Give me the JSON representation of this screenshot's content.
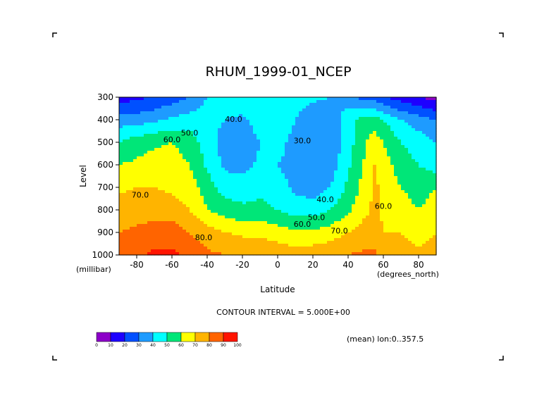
{
  "chart_data": {
    "type": "heatmap",
    "title": "RHUM_1999-01_NCEP",
    "xlabel": "Latitude",
    "ylabel": "Level",
    "x_units": "(degrees_north)",
    "y_units": "(millibar)",
    "xlim": [
      -90,
      90
    ],
    "ylim": [
      1000,
      300
    ],
    "x_ticks": [
      -80,
      -60,
      -40,
      -20,
      0,
      20,
      40,
      60,
      80
    ],
    "x_tick_labels": [
      "-80",
      "-60",
      "-40",
      "-20",
      "0",
      "20",
      "40",
      "60",
      "80"
    ],
    "y_ticks": [
      300,
      400,
      500,
      600,
      700,
      800,
      900,
      1000
    ],
    "y_tick_labels": [
      "300",
      "400",
      "500",
      "600",
      "700",
      "800",
      "900",
      "1000"
    ],
    "contour_interval_text": "CONTOUR INTERVAL = 5.000E+00",
    "annotation": "(mean) lon:0..357.5",
    "levels_x": [
      -90,
      -80,
      -70,
      -60,
      -50,
      -40,
      -30,
      -20,
      -10,
      0,
      10,
      20,
      30,
      40,
      50,
      55,
      60,
      70,
      80,
      90
    ],
    "levels_y": [
      300,
      400,
      500,
      600,
      700,
      800,
      900,
      1000
    ],
    "values": [
      [
        15,
        18,
        20,
        25,
        30,
        40,
        45,
        48,
        50,
        50,
        45,
        42,
        40,
        35,
        25,
        25,
        20,
        15,
        10,
        5
      ],
      [
        35,
        35,
        38,
        42,
        45,
        45,
        40,
        38,
        45,
        50,
        40,
        32,
        35,
        45,
        55,
        55,
        50,
        40,
        35,
        30
      ],
      [
        50,
        55,
        58,
        60,
        55,
        45,
        35,
        33,
        40,
        45,
        35,
        30,
        32,
        45,
        60,
        65,
        60,
        50,
        45,
        40
      ],
      [
        60,
        62,
        65,
        65,
        60,
        48,
        38,
        36,
        42,
        40,
        35,
        30,
        35,
        48,
        62,
        70,
        65,
        55,
        50,
        45
      ],
      [
        68,
        70,
        70,
        68,
        65,
        55,
        45,
        45,
        48,
        45,
        38,
        35,
        40,
        52,
        65,
        72,
        68,
        60,
        55,
        60
      ],
      [
        75,
        75,
        75,
        75,
        70,
        60,
        55,
        52,
        52,
        50,
        45,
        45,
        50,
        58,
        68,
        72,
        68,
        65,
        60,
        65
      ],
      [
        80,
        82,
        85,
        85,
        80,
        75,
        70,
        68,
        68,
        65,
        62,
        62,
        65,
        70,
        75,
        75,
        70,
        70,
        65,
        70
      ],
      [
        85,
        88,
        92,
        92,
        88,
        82,
        80,
        78,
        78,
        76,
        75,
        76,
        78,
        80,
        82,
        82,
        78,
        75,
        72,
        75
      ]
    ],
    "contour_labels": [
      {
        "text": "40.0",
        "x": -25,
        "y": 410
      },
      {
        "text": "50.0",
        "x": -50,
        "y": 470
      },
      {
        "text": "60.0",
        "x": -60,
        "y": 500
      },
      {
        "text": "70.0",
        "x": -78,
        "y": 745
      },
      {
        "text": "80.0",
        "x": -42,
        "y": 935
      },
      {
        "text": "30.0",
        "x": 14,
        "y": 505
      },
      {
        "text": "40.0",
        "x": 27,
        "y": 765
      },
      {
        "text": "50.0",
        "x": 22,
        "y": 845
      },
      {
        "text": "60.0",
        "x": 14,
        "y": 875
      },
      {
        "text": "70.0",
        "x": 35,
        "y": 905
      },
      {
        "text": "60.0",
        "x": 60,
        "y": 795
      }
    ],
    "colorbar": {
      "colors": [
        "#8c00c8",
        "#1e00ff",
        "#0050ff",
        "#1e9bff",
        "#00ffff",
        "#00e678",
        "#ffff00",
        "#ffb400",
        "#ff6400",
        "#ff1400"
      ],
      "labels": [
        "0",
        "10",
        "20",
        "30",
        "40",
        "50",
        "60",
        "70",
        "80",
        "90",
        "100"
      ]
    }
  }
}
